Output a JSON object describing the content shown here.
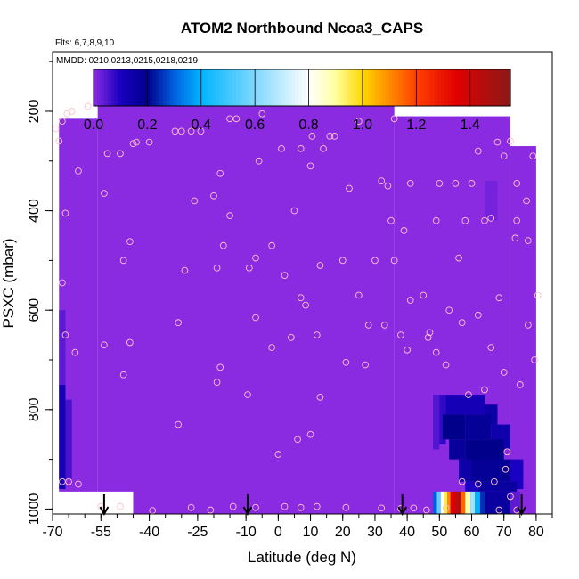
{
  "chart_data": {
    "type": "heatmap",
    "title": "ATOM2 Northbound Ncoa3_CAPS",
    "subtitle_flights": "Flts: 6,7,8,9,10",
    "subtitle_dates": "MMDD: 0210,0213,0215,0218,0219",
    "xlabel": "Latitude (deg N)",
    "ylabel": "PSXC (mbar)",
    "xlim": [
      -70,
      85
    ],
    "ylim": [
      1010,
      80
    ],
    "y_reversed": true,
    "x_major_ticks": [
      -70,
      -55,
      -40,
      -25,
      -10,
      0,
      10,
      20,
      30,
      40,
      50,
      60,
      70,
      80
    ],
    "x_minor_step": 5,
    "y_ticks": [
      200,
      400,
      600,
      800,
      1000
    ],
    "colorbar": {
      "ticks": [
        "0.0",
        "0.2",
        "0.4",
        "0.6",
        "0.8",
        "1.0",
        "1.2",
        "1.4"
      ],
      "min": 0.0,
      "max": 1.55,
      "stops": [
        {
          "v": 0.0,
          "c": "#8a2be2"
        },
        {
          "v": 0.1,
          "c": "#1a00c0"
        },
        {
          "v": 0.2,
          "c": "#00008b"
        },
        {
          "v": 0.3,
          "c": "#0060e0"
        },
        {
          "v": 0.4,
          "c": "#00b4ff"
        },
        {
          "v": 0.6,
          "c": "#80d8ff"
        },
        {
          "v": 0.8,
          "c": "#ffffff"
        },
        {
          "v": 0.9,
          "c": "#ffffa0"
        },
        {
          "v": 1.0,
          "c": "#ffd700"
        },
        {
          "v": 1.2,
          "c": "#ff4000"
        },
        {
          "v": 1.35,
          "c": "#e00000"
        },
        {
          "v": 1.55,
          "c": "#8b1a1a"
        }
      ]
    },
    "background_value": 0.0,
    "field_lat_range": [
      -68,
      80
    ],
    "field_p_top_by_lat": [
      {
        "lat": -68,
        "p": 215
      },
      {
        "lat": -56,
        "p": 165
      },
      {
        "lat": 36,
        "p": 165
      },
      {
        "lat": 40,
        "p": 210
      },
      {
        "lat": 72,
        "p": 210
      },
      {
        "lat": 76,
        "p": 270
      },
      {
        "lat": 80,
        "p": 270
      }
    ],
    "field_blanks": [
      {
        "lat": [
          -70,
          -45
        ],
        "p": [
          965,
          1010
        ]
      },
      {
        "lat": [
          -70,
          -67
        ],
        "p": [
          80,
          215
        ]
      },
      {
        "lat": [
          72,
          85
        ],
        "p": [
          80,
          270
        ]
      },
      {
        "lat": [
          36,
          85
        ],
        "p": [
          80,
          205
        ]
      }
    ],
    "field_cells": [
      {
        "lat": [
          -68,
          -66
        ],
        "p": [
          750,
          960
        ],
        "v": 0.12
      },
      {
        "lat": [
          -68,
          -66
        ],
        "p": [
          600,
          750
        ],
        "v": 0.04
      },
      {
        "lat": [
          -66,
          -64
        ],
        "p": [
          780,
          940
        ],
        "v": 0.06
      },
      {
        "lat": [
          64,
          68
        ],
        "p": [
          340,
          420
        ],
        "v": 0.02
      },
      {
        "lat": [
          48,
          50
        ],
        "p": [
          770,
          880
        ],
        "v": 0.05
      },
      {
        "lat": [
          50,
          52
        ],
        "p": [
          770,
          870
        ],
        "v": 0.08
      },
      {
        "lat": [
          52,
          64
        ],
        "p": [
          770,
          810
        ],
        "v": 0.12
      },
      {
        "lat": [
          64,
          68
        ],
        "p": [
          790,
          830
        ],
        "v": 0.15
      },
      {
        "lat": [
          51,
          58
        ],
        "p": [
          810,
          860
        ],
        "v": 0.2
      },
      {
        "lat": [
          58,
          66
        ],
        "p": [
          810,
          860
        ],
        "v": 0.18
      },
      {
        "lat": [
          66,
          72
        ],
        "p": [
          830,
          880
        ],
        "v": 0.14
      },
      {
        "lat": [
          53,
          58
        ],
        "p": [
          860,
          900
        ],
        "v": 0.17
      },
      {
        "lat": [
          58,
          70
        ],
        "p": [
          860,
          910
        ],
        "v": 0.2
      },
      {
        "lat": [
          56,
          60
        ],
        "p": [
          900,
          945
        ],
        "v": 0.15
      },
      {
        "lat": [
          60,
          72
        ],
        "p": [
          900,
          945
        ],
        "v": 0.18
      },
      {
        "lat": [
          72,
          76
        ],
        "p": [
          900,
          960
        ],
        "v": 0.1
      },
      {
        "lat": [
          58,
          62
        ],
        "p": [
          945,
          965
        ],
        "v": 0.1
      },
      {
        "lat": [
          62,
          74
        ],
        "p": [
          945,
          965
        ],
        "v": 0.16
      },
      {
        "lat": [
          48,
          49.2
        ],
        "p": [
          965,
          1010
        ],
        "v": 0.3
      },
      {
        "lat": [
          49.2,
          50.4
        ],
        "p": [
          965,
          1010
        ],
        "v": 0.55
      },
      {
        "lat": [
          50.4,
          51.4
        ],
        "p": [
          965,
          1010
        ],
        "v": 0.8
      },
      {
        "lat": [
          51.4,
          52.4
        ],
        "p": [
          965,
          1010
        ],
        "v": 0.95
      },
      {
        "lat": [
          52.4,
          53.4
        ],
        "p": [
          965,
          1010
        ],
        "v": 1.1
      },
      {
        "lat": [
          53.4,
          55.0
        ],
        "p": [
          965,
          1010
        ],
        "v": 1.35
      },
      {
        "lat": [
          55.0,
          56.6
        ],
        "p": [
          965,
          1010
        ],
        "v": 1.45
      },
      {
        "lat": [
          56.6,
          58.0
        ],
        "p": [
          965,
          1010
        ],
        "v": 1.15
      },
      {
        "lat": [
          58.0,
          59.6
        ],
        "p": [
          965,
          1010
        ],
        "v": 0.9
      },
      {
        "lat": [
          59.6,
          61.0
        ],
        "p": [
          965,
          1010
        ],
        "v": 0.65
      },
      {
        "lat": [
          61.0,
          62.6
        ],
        "p": [
          965,
          1010
        ],
        "v": 0.4
      },
      {
        "lat": [
          62.6,
          64.0
        ],
        "p": [
          965,
          1010
        ],
        "v": 0.25
      },
      {
        "lat": [
          64.0,
          72.0
        ],
        "p": [
          965,
          1010
        ],
        "v": 0.16
      },
      {
        "lat": [
          72,
          75
        ],
        "p": [
          965,
          1010
        ],
        "v": 0.04
      }
    ],
    "arrow_lats": [
      -54,
      -9.5,
      38.5,
      75.5
    ],
    "sample_points": [
      [
        -69,
        235
      ],
      [
        -68,
        260
      ],
      [
        -67,
        220
      ],
      [
        -65.5,
        205
      ],
      [
        -64,
        200
      ],
      [
        -59,
        190
      ],
      [
        -66,
        405
      ],
      [
        -62,
        320
      ],
      [
        -67,
        545
      ],
      [
        -66,
        650
      ],
      [
        -63,
        685
      ],
      [
        -67,
        945
      ],
      [
        -65,
        945
      ],
      [
        -62,
        950
      ],
      [
        -54,
        365
      ],
      [
        -53,
        285
      ],
      [
        -49,
        285
      ],
      [
        -45,
        265
      ],
      [
        -44,
        262
      ],
      [
        -40,
        262
      ],
      [
        -48,
        500
      ],
      [
        -46,
        462
      ],
      [
        -54,
        670
      ],
      [
        -46,
        665
      ],
      [
        -48,
        730
      ],
      [
        -32,
        240
      ],
      [
        -30,
        240
      ],
      [
        -27,
        240
      ],
      [
        -24,
        240
      ],
      [
        -20,
        370
      ],
      [
        -15,
        215
      ],
      [
        -13,
        215
      ],
      [
        -5,
        205
      ],
      [
        -26,
        380
      ],
      [
        -29,
        520
      ],
      [
        -18,
        325
      ],
      [
        -17,
        470
      ],
      [
        -15,
        410
      ],
      [
        -19,
        515
      ],
      [
        -31,
        625
      ],
      [
        -18,
        715
      ],
      [
        -19,
        745
      ],
      [
        -31,
        830
      ],
      [
        -9,
        515
      ],
      [
        -7,
        495
      ],
      [
        -6,
        300
      ],
      [
        -2,
        470
      ],
      [
        1,
        275
      ],
      [
        2,
        530
      ],
      [
        5,
        400
      ],
      [
        7,
        275
      ],
      [
        10,
        310
      ],
      [
        10.5,
        250
      ],
      [
        13,
        510
      ],
      [
        14,
        275
      ],
      [
        16,
        250
      ],
      [
        17.5,
        250
      ],
      [
        22,
        355
      ],
      [
        25,
        220
      ],
      [
        32,
        340
      ],
      [
        30,
        500
      ],
      [
        36,
        215
      ],
      [
        34,
        350
      ],
      [
        35,
        420
      ],
      [
        39,
        440
      ],
      [
        41,
        345
      ],
      [
        36,
        500
      ],
      [
        41,
        580
      ],
      [
        -7,
        615
      ],
      [
        -2,
        675
      ],
      [
        4,
        655
      ],
      [
        7,
        575
      ],
      [
        8.5,
        590
      ],
      [
        12,
        650
      ],
      [
        20,
        500
      ],
      [
        25,
        570
      ],
      [
        28,
        630
      ],
      [
        33,
        630
      ],
      [
        38,
        650
      ],
      [
        40,
        680
      ],
      [
        21,
        705
      ],
      [
        27,
        710
      ],
      [
        46.5,
        655
      ],
      [
        49,
        685
      ],
      [
        -9.5,
        770
      ],
      [
        13,
        775
      ],
      [
        0,
        890
      ],
      [
        6,
        860
      ],
      [
        10,
        850
      ],
      [
        53,
        600
      ],
      [
        57,
        625
      ],
      [
        52,
        710
      ],
      [
        45,
        570
      ],
      [
        47,
        645
      ],
      [
        50,
        345
      ],
      [
        55,
        345
      ],
      [
        60,
        345
      ],
      [
        49,
        420
      ],
      [
        58,
        420
      ],
      [
        56,
        495
      ],
      [
        64,
        420
      ],
      [
        66,
        415
      ],
      [
        62,
        610
      ],
      [
        68.5,
        575
      ],
      [
        66,
        675
      ],
      [
        70,
        725
      ],
      [
        64,
        760
      ],
      [
        59,
        770
      ],
      [
        62,
        280
      ],
      [
        68,
        262
      ],
      [
        70,
        290
      ],
      [
        72,
        260
      ],
      [
        74,
        345
      ],
      [
        74,
        420
      ],
      [
        73.5,
        455
      ],
      [
        77,
        380
      ],
      [
        77.5,
        460
      ],
      [
        79,
        290
      ],
      [
        79.5,
        700
      ],
      [
        80.5,
        570
      ],
      [
        77.5,
        630
      ],
      [
        75,
        750
      ],
      [
        71,
        885
      ],
      [
        70.5,
        920
      ],
      [
        62,
        950
      ],
      [
        57,
        945
      ],
      [
        67,
        945
      ],
      [
        72,
        975
      ],
      [
        -55,
        995
      ],
      [
        -49,
        995
      ],
      [
        -39,
        1003
      ],
      [
        -27,
        997
      ],
      [
        -21,
        1002
      ],
      [
        -14,
        995
      ],
      [
        -7,
        997
      ],
      [
        2,
        995
      ],
      [
        7,
        997
      ],
      [
        12,
        995
      ],
      [
        21,
        997
      ],
      [
        32,
        998
      ],
      [
        38,
        999
      ],
      [
        42,
        998
      ],
      [
        46,
        1002
      ],
      [
        52,
        998
      ],
      [
        68.5,
        1002
      ],
      [
        74,
        1002
      ]
    ]
  }
}
